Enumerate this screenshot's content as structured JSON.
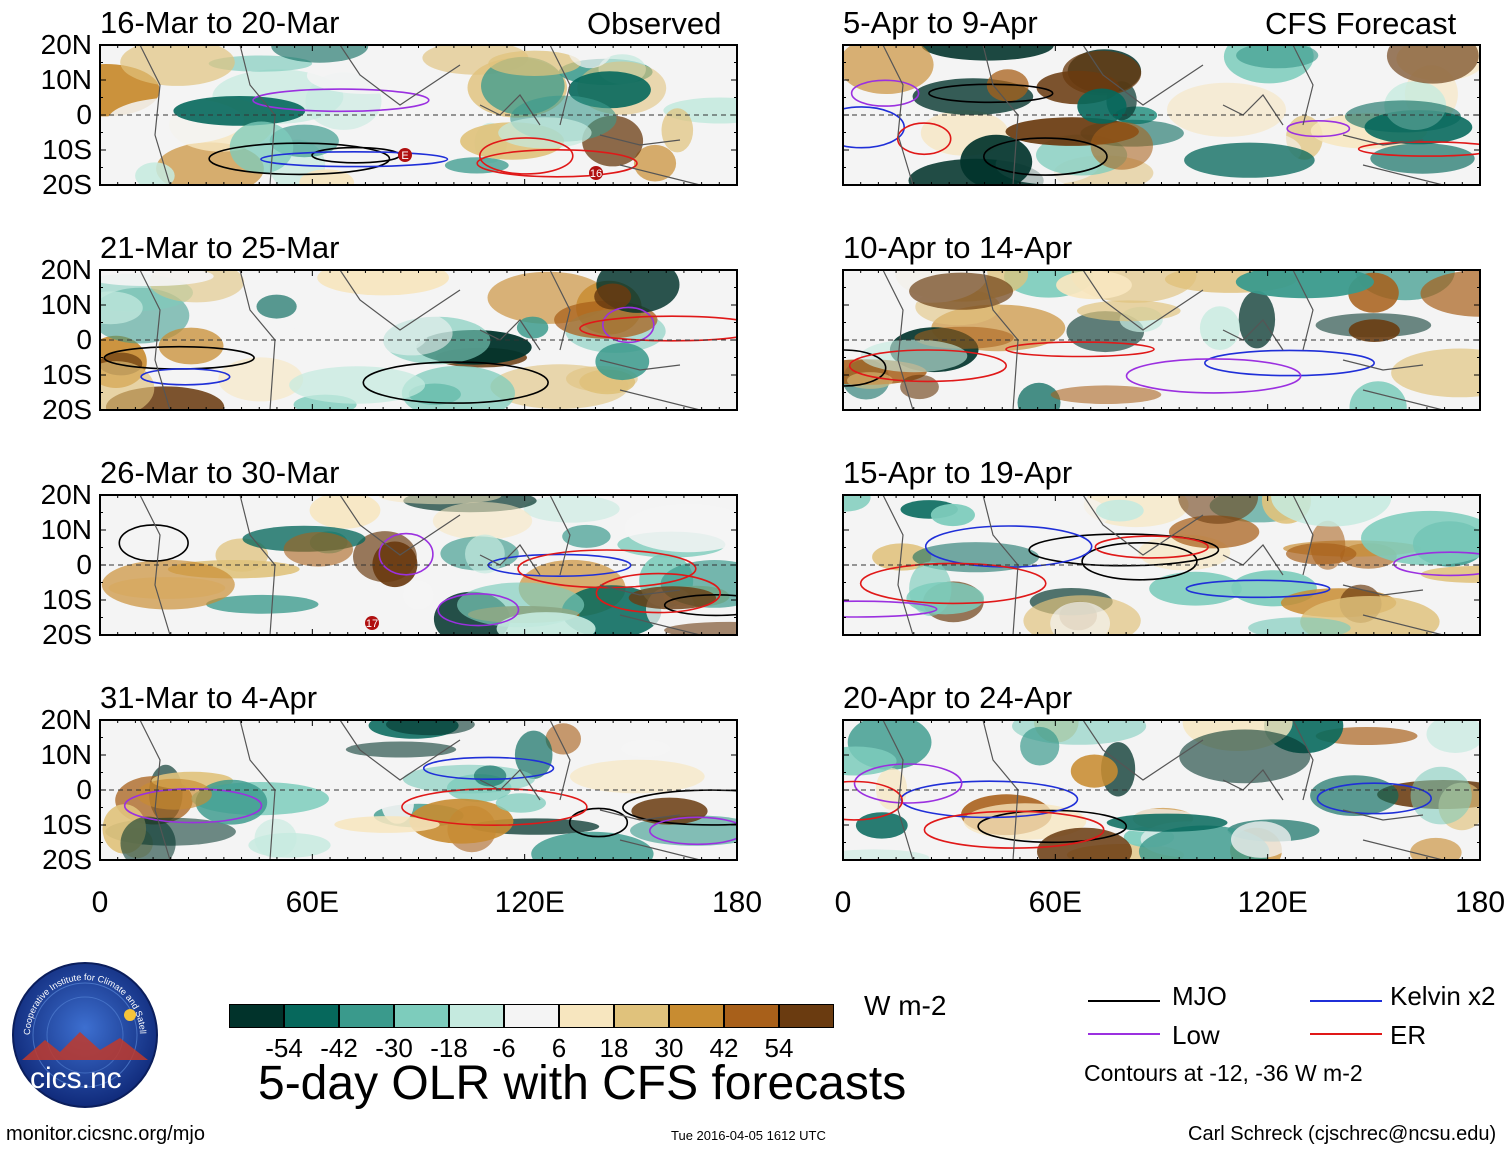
{
  "title": "5-day OLR with CFS forecasts",
  "units": "W m-2",
  "labels": {
    "observed": "Observed",
    "forecast": "CFS Forecast"
  },
  "footer": {
    "left": "monitor.cicsnc.org/mjo",
    "center": "Tue 2016-04-05 1612 UTC",
    "right": "Carl Schreck (cjschrec@ncsu.edu)"
  },
  "logo": {
    "text": "cics.nc",
    "ring_text": "Cooperative Institute for Climate and Satellites"
  },
  "legend": {
    "items": [
      {
        "name": "MJO",
        "color": "#000000"
      },
      {
        "name": "Kelvin x2",
        "color": "#1f2fd8"
      },
      {
        "name": "Low",
        "color": "#9b30e0"
      },
      {
        "name": "ER",
        "color": "#e01818"
      }
    ],
    "note": "Contours at -12, -36 W m-2"
  },
  "colorbar": {
    "colors": [
      "#01332b",
      "#06685c",
      "#3a9a8c",
      "#7dccbc",
      "#c5eadf",
      "#f4f4f4",
      "#f7e6bf",
      "#e0c27c",
      "#c88c31",
      "#a8601a",
      "#6a3b10"
    ],
    "labels": [
      "-54",
      "-42",
      "-30",
      "-18",
      "-6",
      "6",
      "18",
      "30",
      "42",
      "54"
    ]
  },
  "chart_data": {
    "type": "heatmap",
    "variable": "OLR anomaly",
    "units": "W m-2",
    "lat_ticks": [
      "20N",
      "10N",
      "0",
      "10S",
      "20S"
    ],
    "lon_ticks": [
      "0",
      "60E",
      "120E",
      "180"
    ],
    "x_range": [
      0,
      180
    ],
    "y_range": [
      -20,
      20
    ],
    "panels": [
      {
        "period": "16-Mar to 20-Mar",
        "column": "Observed",
        "storm_labels": [
          "E",
          "16"
        ]
      },
      {
        "period": "21-Mar to 25-Mar",
        "column": "Observed"
      },
      {
        "period": "26-Mar to 30-Mar",
        "column": "Observed",
        "storm_labels": [
          "17"
        ]
      },
      {
        "period": "31-Mar to 4-Apr",
        "column": "Observed"
      },
      {
        "period": "5-Apr to 9-Apr",
        "column": "CFS Forecast"
      },
      {
        "period": "10-Apr to 14-Apr",
        "column": "CFS Forecast"
      },
      {
        "period": "15-Apr to 19-Apr",
        "column": "CFS Forecast"
      },
      {
        "period": "20-Apr to 24-Apr",
        "column": "CFS Forecast"
      }
    ],
    "contour_levels": [
      -12,
      -36
    ]
  }
}
